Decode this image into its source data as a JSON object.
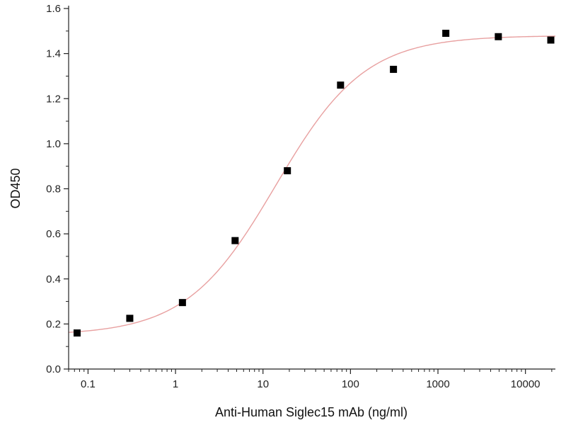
{
  "chart_data": {
    "type": "scatter",
    "title": "",
    "xlabel": "Anti-Human Siglec15 mAb (ng/ml)",
    "ylabel": "OD450",
    "x_scale": "log",
    "xlim": [
      0.06,
      22000
    ],
    "ylim": [
      0,
      1.6
    ],
    "x_ticks": [
      0.1,
      1,
      10,
      100,
      1000,
      10000
    ],
    "x_tick_labels": [
      "0.1",
      "1",
      "10",
      "100",
      "1000",
      "10000"
    ],
    "y_ticks": [
      0,
      0.2,
      0.4,
      0.6,
      0.8,
      1.0,
      1.2,
      1.4,
      1.6
    ],
    "y_tick_labels": [
      "0.0",
      "0.2",
      "0.4",
      "0.6",
      "0.8",
      "1.0",
      "1.2",
      "1.4",
      "1.6"
    ],
    "grid": false,
    "legend": "none",
    "series": [
      {
        "kind": "points",
        "marker": "square",
        "color": "#000000",
        "x": [
          0.075,
          0.3,
          1.2,
          4.8,
          19,
          77,
          310,
          1230,
          4900,
          19500
        ],
        "y": [
          0.16,
          0.225,
          0.295,
          0.57,
          0.88,
          1.26,
          1.33,
          1.49,
          1.475,
          1.46
        ]
      },
      {
        "kind": "fit",
        "curve": "4PL",
        "color": "#e8a0a0",
        "bottom": 0.15,
        "top": 1.48,
        "ec50": 14,
        "hill": 0.85
      }
    ]
  }
}
